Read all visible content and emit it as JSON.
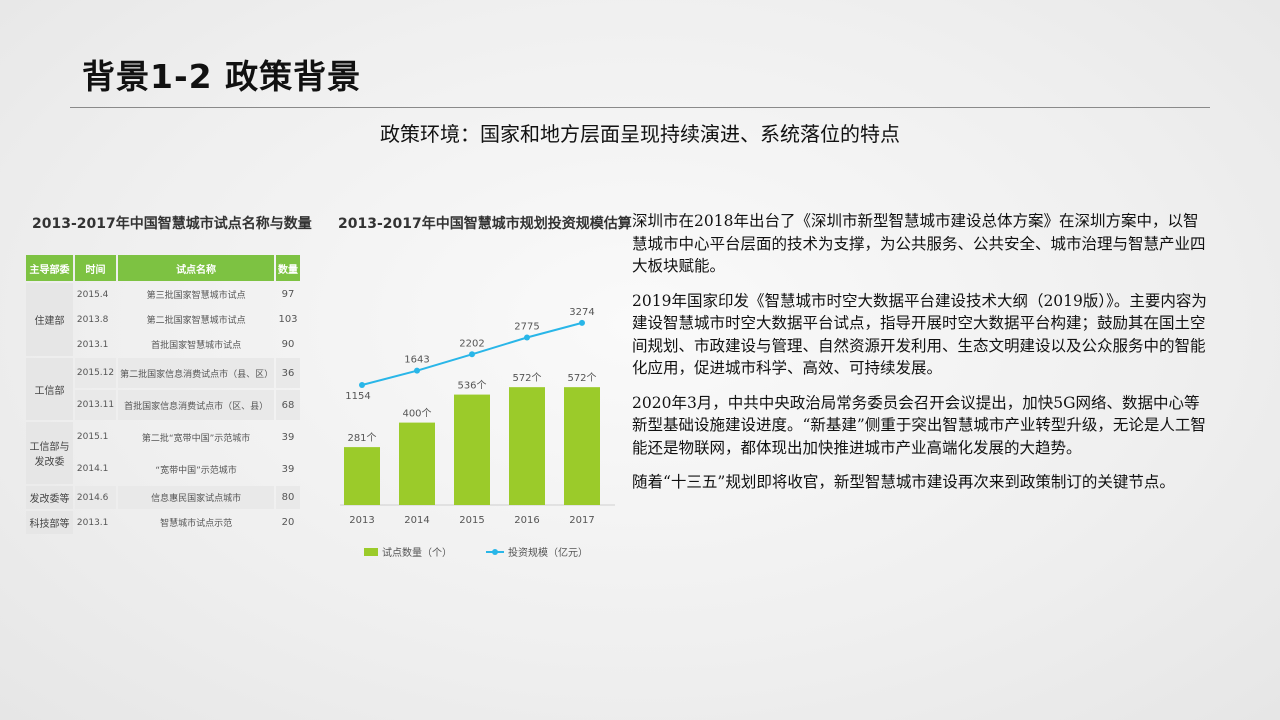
{
  "title": "背景1-2 政策背景",
  "subtitle": "政策环境：国家和地方层面呈现持续演进、系统落位的特点",
  "table": {
    "title": "2013-2017年中国智慧城市试点名称与数量",
    "headers": [
      "主导部委",
      "时间",
      "试点名称",
      "数量"
    ],
    "groups": [
      {
        "dept": "住建部",
        "rows": [
          {
            "time": "2015.4",
            "name": "第三批国家智慧城市试点",
            "count": "97"
          },
          {
            "time": "2013.8",
            "name": "第二批国家智慧城市试点",
            "count": "103"
          },
          {
            "time": "2013.1",
            "name": "首批国家智慧城市试点",
            "count": "90"
          }
        ]
      },
      {
        "dept": "工信部",
        "rows": [
          {
            "time": "2015.12",
            "name": "第二批国家信息消费试点市（县、区）",
            "count": "36"
          },
          {
            "time": "2013.11",
            "name": "首批国家信息消费试点市（区、县）",
            "count": "68"
          }
        ]
      },
      {
        "dept": "工信部与发改委",
        "rows": [
          {
            "time": "2015.1",
            "name": "第二批“宽带中国”示范城市",
            "count": "39"
          },
          {
            "time": "2014.1",
            "name": "“宽带中国”示范城市",
            "count": "39"
          }
        ]
      },
      {
        "dept": "发改委等",
        "rows": [
          {
            "time": "2014.6",
            "name": "信息惠民国家试点城市",
            "count": "80"
          }
        ]
      },
      {
        "dept": "科技部等",
        "rows": [
          {
            "time": "2013.1",
            "name": "智慧城市试点示范",
            "count": "20"
          }
        ]
      }
    ]
  },
  "chart_data": {
    "type": "bar",
    "title": "2013-2017年中国智慧城市规划投资规模估算",
    "categories": [
      "2013",
      "2014",
      "2015",
      "2016",
      "2017"
    ],
    "series": [
      {
        "name": "试点数量（个）",
        "type": "bar",
        "values": [
          281,
          400,
          536,
          572,
          572
        ],
        "labels": [
          "281个",
          "400个",
          "536个",
          "572个",
          "572个"
        ],
        "color": "#9bcb2a"
      },
      {
        "name": "投资规模（亿元）",
        "type": "line",
        "values": [
          1154,
          1643,
          2202,
          2775,
          3274
        ],
        "color": "#29b6e8"
      }
    ],
    "legend": "bottom"
  },
  "paragraphs": [
    "深圳市在2018年出台了《深圳市新型智慧城市建设总体方案》在深圳方案中，以智慧城市中心平台层面的技术为支撑，为公共服务、公共安全、城市治理与智慧产业四大板块赋能。",
    "2019年国家印发《智慧城市时空大数据平台建设技术大纲（2019版）》。主要内容为建设智慧城市时空大数据平台试点，指导开展时空大数据平台构建；鼓励其在国土空间规划、市政建设与管理、自然资源开发利用、生态文明建设以及公众服务中的智能化应用，促进城市科学、高效、可持续发展。",
    "2020年3月，中共中央政治局常务委员会召开会议提出，加快5G网络、数据中心等新型基础设施建设进度。“新基建”侧重于突出智慧城市产业转型升级，无论是人工智能还是物联网，都体现出加快推进城市产业高端化发展的大趋势。",
    "随着“十三五”规划即将收官，新型智慧城市建设再次来到政策制订的关键节点。"
  ]
}
